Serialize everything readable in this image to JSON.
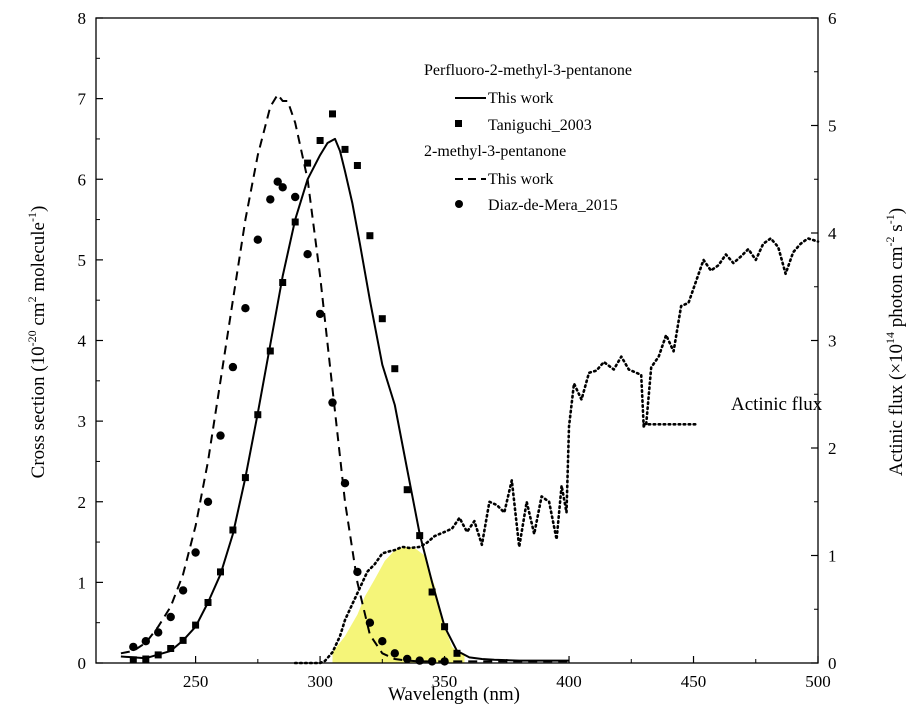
{
  "chart_data": {
    "type": "line",
    "xlabel": "Wavelength (nm)",
    "ylabel": {
      "base": "Cross section (10",
      "exp": "-20",
      "mid": " cm",
      "exp2": "2",
      "end": " molecule",
      "exp3": "-1",
      "close": ")"
    },
    "y2label": {
      "base": "Actinic flux (×10",
      "exp": "14",
      "mid": " photon cm",
      "exp2": "-2",
      "mid2": " s",
      "exp3": "-1",
      "close": ")"
    },
    "xlim": [
      210,
      500
    ],
    "ylim": [
      0,
      8
    ],
    "y2lim": [
      0,
      6
    ],
    "xticks": [
      250,
      300,
      350,
      400,
      450,
      500
    ],
    "yticks": [
      0,
      1,
      2,
      3,
      4,
      5,
      6,
      7,
      8
    ],
    "y2ticks": [
      0,
      1,
      2,
      3,
      4,
      5,
      6
    ],
    "legend": {
      "group1_title": "Perfluoro-2-methyl-3-pentanone",
      "group1_line": "This work",
      "group1_marker": "Taniguchi_2003",
      "group2_title": "2-methyl-3-pentanone",
      "group2_line": "This work",
      "group2_marker": "Diaz-de-Mera_2015"
    },
    "annotation": "Actinic flux",
    "overlap_fill_color": "#f4f46a",
    "series": [
      {
        "key": "pfmp_this_work",
        "style": "solid",
        "x": [
          220,
          230,
          240,
          245,
          250,
          255,
          260,
          265,
          270,
          275,
          280,
          285,
          290,
          295,
          300,
          303,
          306,
          308,
          310,
          313,
          316,
          320,
          325,
          330,
          335,
          340,
          345,
          350,
          355,
          360,
          365,
          370,
          380,
          390,
          400
        ],
        "y": [
          0.08,
          0.06,
          0.15,
          0.28,
          0.45,
          0.75,
          1.1,
          1.6,
          2.3,
          3.1,
          3.95,
          4.8,
          5.5,
          6.0,
          6.3,
          6.45,
          6.5,
          6.35,
          6.1,
          5.7,
          5.2,
          4.5,
          3.7,
          3.2,
          2.4,
          1.6,
          1.0,
          0.45,
          0.15,
          0.07,
          0.05,
          0.04,
          0.03,
          0.03,
          0.03
        ]
      },
      {
        "key": "taniguchi_2003",
        "style": "square",
        "x": [
          225,
          230,
          235,
          240,
          245,
          250,
          255,
          260,
          265,
          270,
          275,
          280,
          285,
          290,
          295,
          300,
          305,
          310,
          315,
          320,
          325,
          330,
          335,
          340,
          345,
          350,
          355
        ],
        "y": [
          0.04,
          0.05,
          0.1,
          0.18,
          0.28,
          0.47,
          0.75,
          1.13,
          1.65,
          2.3,
          3.08,
          3.87,
          4.72,
          5.47,
          6.2,
          6.48,
          6.81,
          6.37,
          6.17,
          5.3,
          4.27,
          3.65,
          2.15,
          1.58,
          0.88,
          0.45,
          0.12
        ]
      },
      {
        "key": "mp_this_work",
        "style": "dashed",
        "x": [
          220,
          225,
          230,
          235,
          240,
          245,
          250,
          255,
          260,
          265,
          270,
          275,
          280,
          283,
          285,
          287,
          290,
          295,
          300,
          305,
          310,
          315,
          320,
          325,
          330,
          335,
          340,
          350,
          360,
          380,
          400
        ],
        "y": [
          0.12,
          0.15,
          0.25,
          0.45,
          0.7,
          1.1,
          1.7,
          2.5,
          3.5,
          4.5,
          5.5,
          6.3,
          6.9,
          7.05,
          6.97,
          6.97,
          6.7,
          6.0,
          4.8,
          3.4,
          2.0,
          1.0,
          0.35,
          0.12,
          0.05,
          0.03,
          0.02,
          0.02,
          0.02,
          0.02,
          0.02
        ]
      },
      {
        "key": "diaz_de_mera_2015",
        "style": "circle",
        "x": [
          225,
          230,
          235,
          240,
          245,
          250,
          255,
          260,
          265,
          270,
          275,
          280,
          283,
          285,
          290,
          295,
          300,
          305,
          310,
          315,
          320,
          325,
          330,
          335,
          340,
          345,
          350
        ],
        "y": [
          0.2,
          0.27,
          0.38,
          0.57,
          0.9,
          1.37,
          2.0,
          2.82,
          3.67,
          4.4,
          5.25,
          5.75,
          5.97,
          5.9,
          5.78,
          5.07,
          4.33,
          3.23,
          2.23,
          1.13,
          0.5,
          0.27,
          0.12,
          0.05,
          0.03,
          0.02,
          0.02
        ]
      },
      {
        "key": "actinic_flux",
        "style": "dotted",
        "axis": "right",
        "x": [
          290,
          300,
          302,
          305,
          308,
          310,
          313,
          316,
          319,
          322,
          325,
          328,
          330,
          333,
          336,
          340,
          343,
          346,
          350,
          353,
          356,
          359,
          362,
          365,
          368,
          371,
          374,
          377,
          380,
          383,
          386,
          389,
          392,
          395,
          397,
          399,
          400,
          402,
          405,
          408,
          411,
          414,
          418,
          421,
          424,
          427,
          429,
          430,
          431,
          433,
          436,
          439,
          442,
          445,
          448,
          451,
          454,
          457,
          460,
          463,
          466,
          469,
          472,
          475,
          478,
          481,
          484,
          487,
          490,
          493,
          496,
          500
        ],
        "y": [
          0.0,
          0.0,
          0.02,
          0.1,
          0.25,
          0.4,
          0.55,
          0.7,
          0.85,
          0.92,
          1.02,
          1.04,
          1.05,
          1.08,
          1.07,
          1.08,
          1.12,
          1.18,
          1.22,
          1.25,
          1.35,
          1.22,
          1.32,
          1.1,
          1.5,
          1.47,
          1.4,
          1.7,
          1.08,
          1.5,
          1.2,
          1.55,
          1.5,
          1.15,
          1.65,
          1.4,
          2.2,
          2.6,
          2.45,
          2.7,
          2.72,
          2.8,
          2.73,
          2.85,
          2.73,
          2.7,
          2.68,
          2.2,
          2.22,
          2.75,
          2.85,
          3.05,
          2.9,
          3.32,
          3.35,
          3.55,
          3.75,
          3.65,
          3.7,
          3.8,
          3.72,
          3.78,
          3.85,
          3.75,
          3.9,
          3.95,
          3.87,
          3.62,
          3.82,
          3.9,
          3.95,
          3.92
        ]
      },
      {
        "key": "actinic_pointer",
        "style": "dotted",
        "axis": "right",
        "x": [
          430,
          451
        ],
        "y": [
          2.22,
          2.22
        ]
      }
    ],
    "overlap_region": {
      "x": [
        305,
        310,
        315,
        318,
        322,
        326,
        330,
        334,
        338,
        342,
        346,
        350,
        353,
        356,
        358
      ],
      "upper": [
        0.1,
        0.25,
        0.45,
        0.62,
        0.78,
        0.95,
        1.05,
        1.08,
        1.07,
        1.0,
        0.72,
        0.34,
        0.15,
        0.09,
        0.07
      ],
      "lower": [
        0.0,
        0.0,
        0.0,
        0.0,
        0.0,
        0.0,
        0.0,
        0.0,
        0.0,
        0.0,
        0.0,
        0.0,
        0.0,
        0.0,
        0.0
      ]
    }
  }
}
